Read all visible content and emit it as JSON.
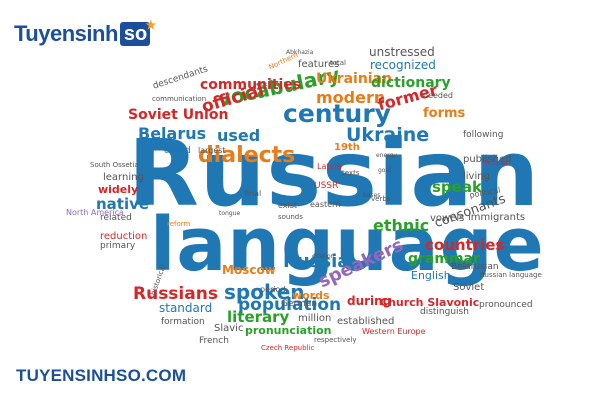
{
  "logo": {
    "name": "Tuyensinh",
    "box": "so",
    "icon": "star-icon"
  },
  "website": "TUYENSINHSO.COM",
  "words": [
    {
      "t": "Russian",
      "c": "#1f77b4",
      "big": true
    },
    {
      "t": "language",
      "c": "#1f77b4",
      "big": true
    },
    {
      "t": "century",
      "c": "#1f77b4"
    },
    {
      "t": "dialects",
      "c": "#e77c1a"
    },
    {
      "t": "vocabulary",
      "c": "#2aa02b"
    },
    {
      "t": "Ukraine",
      "c": "#1f77b4"
    },
    {
      "t": "Belarus",
      "c": "#1f77b4"
    },
    {
      "t": "used",
      "c": "#1f77b4"
    },
    {
      "t": "official",
      "c": "#d62728"
    },
    {
      "t": "Soviet Union",
      "c": "#d62728"
    },
    {
      "t": "communities",
      "c": "#d62728"
    },
    {
      "t": "modern",
      "c": "#e77c1a"
    },
    {
      "t": "former",
      "c": "#d62728"
    },
    {
      "t": "Ukrainian",
      "c": "#e77c1a"
    },
    {
      "t": "dictionary",
      "c": "#2aa02b"
    },
    {
      "t": "recognized",
      "c": "#1f77b4"
    },
    {
      "t": "unstressed",
      "c": "#555555"
    },
    {
      "t": "forms",
      "c": "#e77c1a"
    },
    {
      "t": "features",
      "c": "#555555"
    },
    {
      "t": "descendants",
      "c": "#555555"
    },
    {
      "t": "communication",
      "c": "#555555"
    },
    {
      "t": "Northern",
      "c": "#e77c1a"
    },
    {
      "t": "total",
      "c": "#555555"
    },
    {
      "t": "needed",
      "c": "#555555"
    },
    {
      "t": "19th",
      "c": "#e77c1a"
    },
    {
      "t": "called",
      "c": "#1f77b4"
    },
    {
      "t": "largest",
      "c": "#555555"
    },
    {
      "t": "following",
      "c": "#555555"
    },
    {
      "t": "published",
      "c": "#555555"
    },
    {
      "t": "living",
      "c": "#555555"
    },
    {
      "t": "Poland",
      "c": "#d62728"
    },
    {
      "t": "political",
      "c": "#555555"
    },
    {
      "t": "immigrants",
      "c": "#555555"
    },
    {
      "t": "Latvia",
      "c": "#d62728"
    },
    {
      "t": "USSR",
      "c": "#d62728"
    },
    {
      "t": "speak",
      "c": "#2aa02b"
    },
    {
      "t": "learning",
      "c": "#555555"
    },
    {
      "t": "widely",
      "c": "#d62728"
    },
    {
      "t": "native",
      "c": "#1f77b4"
    },
    {
      "t": "related",
      "c": "#555555"
    },
    {
      "t": "reduction",
      "c": "#d62728"
    },
    {
      "t": "primary",
      "c": "#555555"
    },
    {
      "t": "North America",
      "c": "#9467bd"
    },
    {
      "t": "South Ossetia",
      "c": "#555555"
    },
    {
      "t": "ethnic",
      "c": "#2aa02b"
    },
    {
      "t": "vowels",
      "c": "#555555"
    },
    {
      "t": "consonants",
      "c": "#555555"
    },
    {
      "t": "countries",
      "c": "#d62728"
    },
    {
      "t": "grammar",
      "c": "#2aa02b"
    },
    {
      "t": "Belarusian",
      "c": "#555555"
    },
    {
      "t": "Russian language",
      "c": "#555555"
    },
    {
      "t": "English",
      "c": "#1f77b4"
    },
    {
      "t": "Soviet",
      "c": "#555555"
    },
    {
      "t": "pronounced",
      "c": "#555555"
    },
    {
      "t": "Church Slavonic",
      "c": "#d62728"
    },
    {
      "t": "distinguish",
      "c": "#555555"
    },
    {
      "t": "Russia",
      "c": "#1f77b4"
    },
    {
      "t": "speakers",
      "c": "#9467bd"
    },
    {
      "t": "during",
      "c": "#d62728"
    },
    {
      "t": "spoken",
      "c": "#1f77b4"
    },
    {
      "t": "Moscow",
      "c": "#e77c1a"
    },
    {
      "t": "Russians",
      "c": "#d62728"
    },
    {
      "t": "population",
      "c": "#1f77b4"
    },
    {
      "t": "words",
      "c": "#e77c1a"
    },
    {
      "t": "literary",
      "c": "#2aa02b"
    },
    {
      "t": "standard",
      "c": "#1f77b4"
    },
    {
      "t": "million",
      "c": "#555555"
    },
    {
      "t": "German",
      "c": "#555555"
    },
    {
      "t": "pronunciation",
      "c": "#2aa02b"
    },
    {
      "t": "Slavic",
      "c": "#555555"
    },
    {
      "t": "formation",
      "c": "#555555"
    },
    {
      "t": "historical",
      "c": "#555555"
    },
    {
      "t": "French",
      "c": "#555555"
    },
    {
      "t": "Czech Republic",
      "c": "#d62728"
    },
    {
      "t": "established",
      "c": "#555555"
    },
    {
      "t": "Western Europe",
      "c": "#d62728"
    },
    {
      "t": "respectively",
      "c": "#555555"
    },
    {
      "t": "period",
      "c": "#555555"
    },
    {
      "t": "final",
      "c": "#555555"
    },
    {
      "t": "exist",
      "c": "#555555"
    },
    {
      "t": "sounds",
      "c": "#555555"
    },
    {
      "t": "eastern",
      "c": "#555555"
    },
    {
      "t": "texts",
      "c": "#555555"
    },
    {
      "t": "verbs",
      "c": "#555555"
    },
    {
      "t": "reform",
      "c": "#e77c1a"
    },
    {
      "t": "tongue",
      "c": "#555555"
    },
    {
      "t": "citation",
      "c": "#555555"
    },
    {
      "t": "Abkhazia",
      "c": "#555555"
    },
    {
      "t": "book",
      "c": "#555555"
    },
    {
      "t": "goal",
      "c": "#555555"
    },
    {
      "t": "bases",
      "c": "#555555"
    },
    {
      "t": "energy",
      "c": "#555555"
    }
  ]
}
